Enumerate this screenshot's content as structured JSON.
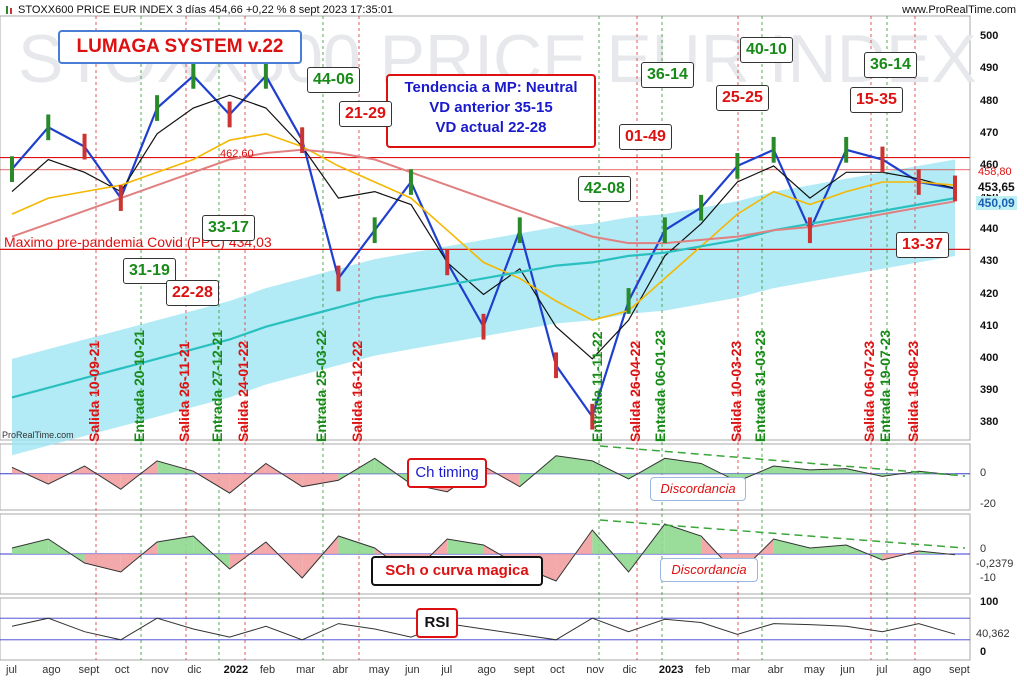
{
  "header": {
    "title": "STOXX600 PRICE EUR INDEX 3 días 454,66 +0,22 % 8 sept 2023 17:35:01",
    "site": "www.ProRealTime.com"
  },
  "watermark": "STOXX600 PRICE EUR INDEX",
  "credit": "ProRealTime.com",
  "boxes": {
    "system": "LUMAGA SYSTEM v.22",
    "trend_line1": "Tendencia a MP: Neutral",
    "trend_line2": "VD anterior 35-15",
    "trend_line3": "VD actual 22-28",
    "ch_timing": "Ch timing",
    "sch": "SCh o curva magica",
    "rsi": "RSI",
    "discordancia1": "Discordancia",
    "discordancia2": "Discordancia"
  },
  "annotations": {
    "premax": "Maximo pre-pandemia Covid (PPC)  434,03",
    "level_462": "462,60"
  },
  "tags": [
    {
      "text": "31-19",
      "color": "g"
    },
    {
      "text": "22-28",
      "color": "r"
    },
    {
      "text": "33-17",
      "color": "g"
    },
    {
      "text": "44-06",
      "color": "g"
    },
    {
      "text": "21-29",
      "color": "r"
    },
    {
      "text": "42-08",
      "color": "g"
    },
    {
      "text": "01-49",
      "color": "r"
    },
    {
      "text": "36-14",
      "color": "g"
    },
    {
      "text": "40-10",
      "color": "g"
    },
    {
      "text": "25-25",
      "color": "r"
    },
    {
      "text": "36-14",
      "color": "g"
    },
    {
      "text": "15-35",
      "color": "r"
    },
    {
      "text": "13-37",
      "color": "r"
    }
  ],
  "signals": [
    {
      "text": "Salida 10-09-21",
      "color": "r"
    },
    {
      "text": "Entrada 20-10-21",
      "color": "g"
    },
    {
      "text": "Salida 26-11-21",
      "color": "r"
    },
    {
      "text": "Entrada 27-12-21",
      "color": "g"
    },
    {
      "text": "Salida 24-01-22",
      "color": "r"
    },
    {
      "text": "Entrada 25-03-22",
      "color": "g"
    },
    {
      "text": "Salida 16-12-22",
      "color": "r"
    },
    {
      "text": "Entrada 11-11-22",
      "color": "g"
    },
    {
      "text": "Salida 26-04-22",
      "color": "r"
    },
    {
      "text": "Entrada 06-01-23",
      "color": "g"
    },
    {
      "text": "Salida 10-03-23",
      "color": "r"
    },
    {
      "text": "Entrada 31-03-23",
      "color": "g"
    },
    {
      "text": "Salida 06-07-23",
      "color": "r"
    },
    {
      "text": "Entrada 19-07-23",
      "color": "g"
    },
    {
      "text": "Salida 16-08-23",
      "color": "r"
    }
  ],
  "axis": {
    "price_ticks": [
      "500",
      "490",
      "480",
      "470",
      "460",
      "450",
      "440",
      "430",
      "420",
      "410",
      "400",
      "390",
      "380"
    ],
    "price_current": "453,65",
    "price_ma": "450,09",
    "price_458": "458,80",
    "ind1_ticks": [
      "0",
      "-20"
    ],
    "ind2_ticks": [
      "0",
      "-10"
    ],
    "ind2_value": "-0,2379",
    "rsi_ticks": [
      "100",
      "0"
    ],
    "rsi_value": "40,362",
    "months": [
      "jul",
      "ago",
      "sept",
      "oct",
      "nov",
      "dic",
      "2022",
      "feb",
      "mar",
      "abr",
      "may",
      "jun",
      "jul",
      "ago",
      "sept",
      "oct",
      "nov",
      "dic",
      "2023",
      "feb",
      "mar",
      "abr",
      "may",
      "jun",
      "jul",
      "ago",
      "sept"
    ]
  },
  "chart_data": {
    "type": "line",
    "title": "STOXX600 PRICE EUR INDEX 3 días",
    "x": [
      "jul",
      "ago",
      "sept",
      "oct",
      "nov",
      "dic",
      "2022",
      "feb",
      "mar",
      "abr",
      "may",
      "jun",
      "jul",
      "ago",
      "sept",
      "oct",
      "nov",
      "dic",
      "2023",
      "feb",
      "mar",
      "abr",
      "may",
      "jun",
      "jul",
      "ago",
      "sept"
    ],
    "ylim": [
      376,
      506
    ],
    "series": [
      {
        "values": [
          459,
          472,
          466,
          450,
          478,
          488,
          476,
          488,
          468,
          425,
          440,
          455,
          430,
          410,
          440,
          398,
          382,
          418,
          440,
          447,
          460,
          465,
          440,
          465,
          462,
          455,
          453
        ]
      },
      {
        "values": [
          452,
          462,
          458,
          452,
          470,
          478,
          482,
          478,
          466,
          450,
          452,
          448,
          430,
          420,
          428,
          410,
          400,
          412,
          432,
          442,
          455,
          460,
          450,
          458,
          458,
          456,
          453
        ]
      },
      {
        "values": [
          445,
          450,
          452,
          454,
          458,
          462,
          468,
          470,
          466,
          460,
          455,
          450,
          440,
          430,
          425,
          418,
          412,
          415,
          425,
          435,
          445,
          452,
          448,
          452,
          455,
          455,
          454
        ]
      },
      {
        "values": [
          388,
          391,
          394,
          397,
          400,
          403,
          406,
          410,
          413,
          416,
          419,
          421,
          423,
          425,
          427,
          429,
          430,
          432,
          433,
          435,
          437,
          440,
          442,
          444,
          446,
          448,
          450
        ]
      },
      {
        "values": [
          438,
          442,
          446,
          450,
          454,
          458,
          462,
          464,
          465,
          464,
          462,
          458,
          454,
          450,
          446,
          442,
          438,
          436,
          436,
          437,
          438,
          440,
          441,
          443,
          445,
          447,
          449
        ]
      }
    ],
    "hlines": [
      462.6,
      434.03,
      458.8
    ],
    "ind1": [
      5,
      -8,
      6,
      -12,
      10,
      2,
      -15,
      8,
      -10,
      -5,
      12,
      -8,
      -14,
      6,
      -10,
      14,
      10,
      -4,
      12,
      8,
      -6,
      6,
      3,
      4,
      -2,
      2,
      -1
    ],
    "ind2": [
      2,
      5,
      -3,
      -6,
      4,
      6,
      -5,
      4,
      -8,
      6,
      2,
      -7,
      5,
      3,
      -4,
      -9,
      8,
      -6,
      10,
      6,
      -7,
      5,
      2,
      3,
      -2,
      1,
      -0.2379
    ],
    "rsi": [
      55,
      70,
      45,
      30,
      70,
      50,
      35,
      55,
      30,
      60,
      50,
      35,
      60,
      50,
      40,
      30,
      70,
      45,
      68,
      62,
      40,
      60,
      58,
      55,
      45,
      60,
      40.362
    ]
  }
}
